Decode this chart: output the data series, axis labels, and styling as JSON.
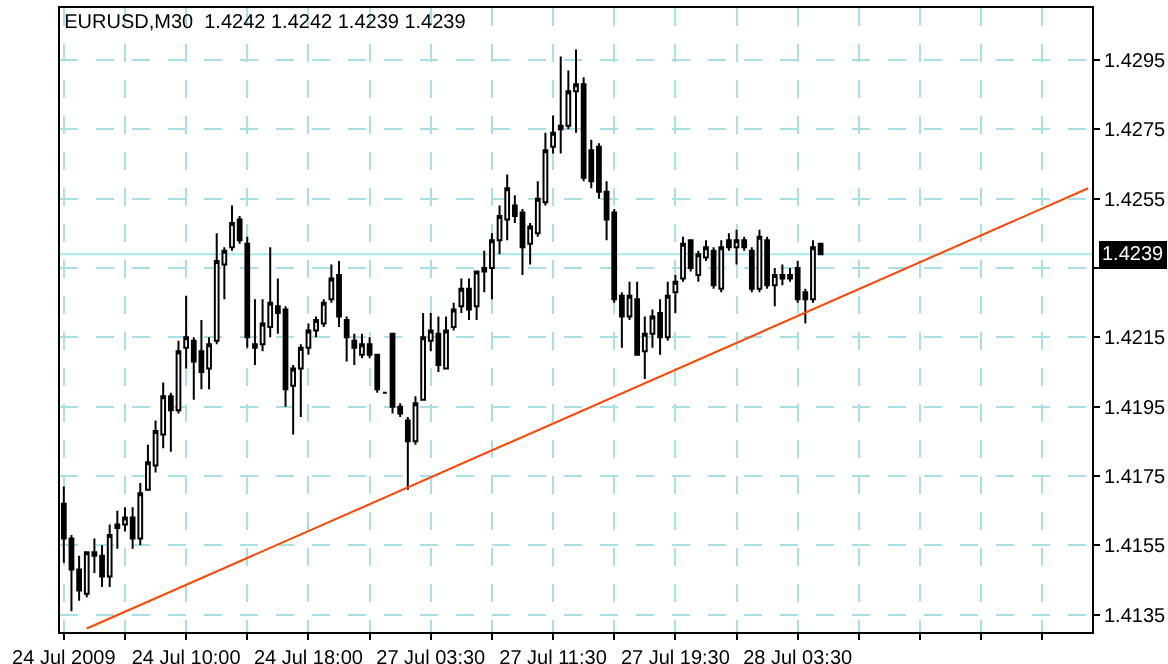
{
  "chart_data": {
    "type": "candlestick",
    "title": "EURUSD,M30  1.4242 1.4242 1.4239 1.4239",
    "categories": [
      "24 Jul 2009",
      null,
      null,
      null,
      null,
      null,
      null,
      null,
      null,
      null,
      null,
      null,
      null,
      null,
      null,
      null,
      "24 Jul 10:00",
      null,
      null,
      null,
      null,
      null,
      null,
      null,
      null,
      null,
      null,
      null,
      null,
      null,
      null,
      null,
      "24 Jul 18:00",
      null,
      null,
      null,
      null,
      null,
      null,
      null,
      null,
      null,
      null,
      null,
      null,
      null,
      null,
      null,
      "27 Jul 03:30",
      null,
      null,
      null,
      null,
      null,
      null,
      null,
      null,
      null,
      null,
      null,
      null,
      null,
      null,
      null,
      "27 Jul 11:30",
      null,
      null,
      null,
      null,
      null,
      null,
      null,
      null,
      null,
      null,
      null,
      null,
      null,
      null,
      null,
      "27 Jul 19:30",
      null,
      null,
      null,
      null,
      null,
      null,
      null,
      null,
      null,
      null,
      null,
      null,
      null,
      null,
      null,
      "28 Jul 03:30",
      null,
      null,
      null,
      null,
      null,
      null,
      null,
      null,
      null,
      null,
      null,
      null,
      null,
      null,
      null,
      null,
      null,
      null,
      null,
      null,
      null,
      null,
      null,
      null,
      null,
      null,
      null,
      null,
      null,
      null,
      null,
      null,
      null,
      null,
      null,
      null,
      null,
      null
    ],
    "series": [
      {
        "color": "#000000",
        "ohlc": [
          [
            1.4167,
            1.4172,
            1.415,
            1.4157
          ],
          [
            1.4157,
            1.4158,
            1.4136,
            1.4148
          ],
          [
            1.4148,
            1.4152,
            1.4139,
            1.4142
          ],
          [
            1.4141,
            1.4153,
            1.414,
            1.4153
          ],
          [
            1.4153,
            1.4157,
            1.4147,
            1.4152
          ],
          [
            1.4152,
            1.4155,
            1.4143,
            1.4146
          ],
          [
            1.4146,
            1.4161,
            1.4143,
            1.4158
          ],
          [
            1.416,
            1.4165,
            1.4154,
            1.4161
          ],
          [
            1.4161,
            1.4166,
            1.4159,
            1.4163
          ],
          [
            1.4163,
            1.4166,
            1.4154,
            1.4157
          ],
          [
            1.4157,
            1.4173,
            1.4155,
            1.417
          ],
          [
            1.4171,
            1.4184,
            1.4171,
            1.4179
          ],
          [
            1.4178,
            1.4191,
            1.4176,
            1.4188
          ],
          [
            1.4187,
            1.4202,
            1.4183,
            1.4198
          ],
          [
            1.4198,
            1.4199,
            1.4182,
            1.4194
          ],
          [
            1.4194,
            1.4214,
            1.4193,
            1.4211
          ],
          [
            1.4212,
            1.4227,
            1.4206,
            1.4215
          ],
          [
            1.4214,
            1.4215,
            1.4197,
            1.4208
          ],
          [
            1.4211,
            1.422,
            1.42,
            1.4205
          ],
          [
            1.4206,
            1.4215,
            1.42,
            1.4213
          ],
          [
            1.4214,
            1.4245,
            1.4213,
            1.4237
          ],
          [
            1.4236,
            1.4241,
            1.4226,
            1.424
          ],
          [
            1.4241,
            1.4253,
            1.424,
            1.4248
          ],
          [
            1.4249,
            1.425,
            1.4242,
            1.4243
          ],
          [
            1.4242,
            1.4244,
            1.4212,
            1.4215
          ],
          [
            1.4213,
            1.4226,
            1.4207,
            1.4212
          ],
          [
            1.4213,
            1.4226,
            1.4211,
            1.4219
          ],
          [
            1.4218,
            1.4241,
            1.4215,
            1.4225
          ],
          [
            1.4224,
            1.4232,
            1.4216,
            1.4222
          ],
          [
            1.4223,
            1.4224,
            1.4195,
            1.42
          ],
          [
            1.4201,
            1.4207,
            1.4187,
            1.4206
          ],
          [
            1.4206,
            1.4213,
            1.4192,
            1.4212
          ],
          [
            1.4212,
            1.4219,
            1.421,
            1.4217
          ],
          [
            1.4217,
            1.4221,
            1.4215,
            1.422
          ],
          [
            1.4219,
            1.4226,
            1.4218,
            1.4225
          ],
          [
            1.4226,
            1.4236,
            1.4225,
            1.4232
          ],
          [
            1.4233,
            1.4237,
            1.4218,
            1.4221
          ],
          [
            1.422,
            1.4221,
            1.4208,
            1.4215
          ],
          [
            1.4214,
            1.4216,
            1.4207,
            1.4212
          ],
          [
            1.421,
            1.4216,
            1.4209,
            1.4213
          ],
          [
            1.4213,
            1.4215,
            1.4209,
            1.421
          ],
          [
            1.421,
            1.421,
            1.4199,
            1.42
          ],
          [
            1.4199,
            1.4199,
            1.4199,
            1.4199
          ],
          [
            1.4216,
            1.4216,
            1.4193,
            1.4195
          ],
          [
            1.4195,
            1.4196,
            1.4192,
            1.4193
          ],
          [
            1.4191,
            1.4192,
            1.4171,
            1.4185
          ],
          [
            1.4185,
            1.4198,
            1.4184,
            1.4196
          ],
          [
            1.4197,
            1.4222,
            1.4197,
            1.4215
          ],
          [
            1.4214,
            1.4222,
            1.4211,
            1.4217
          ],
          [
            1.4216,
            1.4221,
            1.4205,
            1.4207
          ],
          [
            1.4206,
            1.4221,
            1.4206,
            1.4217
          ],
          [
            1.4218,
            1.4225,
            1.4217,
            1.4223
          ],
          [
            1.4224,
            1.4232,
            1.4222,
            1.4229
          ],
          [
            1.4229,
            1.4232,
            1.422,
            1.4223
          ],
          [
            1.4224,
            1.4234,
            1.422,
            1.4234
          ],
          [
            1.4234,
            1.424,
            1.4228,
            1.4235
          ],
          [
            1.4235,
            1.4245,
            1.4226,
            1.4243
          ],
          [
            1.4243,
            1.4253,
            1.4239,
            1.425
          ],
          [
            1.4249,
            1.4262,
            1.4243,
            1.4258
          ],
          [
            1.4253,
            1.4256,
            1.4248,
            1.425
          ],
          [
            1.4251,
            1.4252,
            1.4233,
            1.4241
          ],
          [
            1.4242,
            1.4248,
            1.4236,
            1.4247
          ],
          [
            1.4245,
            1.426,
            1.4244,
            1.4255
          ],
          [
            1.4254,
            1.4274,
            1.4253,
            1.4269
          ],
          [
            1.427,
            1.4279,
            1.4268,
            1.4274
          ],
          [
            1.4275,
            1.4296,
            1.4268,
            1.4276
          ],
          [
            1.4276,
            1.4292,
            1.4275,
            1.4286
          ],
          [
            1.4286,
            1.4298,
            1.4274,
            1.4288
          ],
          [
            1.4288,
            1.429,
            1.426,
            1.4261
          ],
          [
            1.4269,
            1.4272,
            1.4258,
            1.426
          ],
          [
            1.427,
            1.4271,
            1.4255,
            1.4257
          ],
          [
            1.4257,
            1.426,
            1.4243,
            1.4249
          ],
          [
            1.4251,
            1.4252,
            1.4225,
            1.4226
          ],
          [
            1.4227,
            1.4228,
            1.4212,
            1.4221
          ],
          [
            1.4221,
            1.4231,
            1.422,
            1.4227
          ],
          [
            1.4226,
            1.4231,
            1.421,
            1.421
          ],
          [
            1.4211,
            1.4221,
            1.4203,
            1.4216
          ],
          [
            1.4216,
            1.4223,
            1.4212,
            1.4221
          ],
          [
            1.4222,
            1.4226,
            1.421,
            1.4215
          ],
          [
            1.4215,
            1.4231,
            1.4214,
            1.4227
          ],
          [
            1.4228,
            1.4233,
            1.4222,
            1.4231
          ],
          [
            1.4232,
            1.4244,
            1.4231,
            1.4242
          ],
          [
            1.4243,
            1.4243,
            1.4234,
            1.4235
          ],
          [
            1.4233,
            1.424,
            1.4231,
            1.4239
          ],
          [
            1.4238,
            1.4243,
            1.4237,
            1.4241
          ],
          [
            1.424,
            1.4241,
            1.4229,
            1.423
          ],
          [
            1.4229,
            1.4243,
            1.4228,
            1.4241
          ],
          [
            1.4243,
            1.4245,
            1.424,
            1.4241
          ],
          [
            1.4241,
            1.4246,
            1.4236,
            1.4243
          ],
          [
            1.4243,
            1.4244,
            1.424,
            1.4241
          ],
          [
            1.424,
            1.4241,
            1.4228,
            1.4229
          ],
          [
            1.4229,
            1.4246,
            1.4228,
            1.4244
          ],
          [
            1.4243,
            1.4244,
            1.4229,
            1.423
          ],
          [
            1.423,
            1.4235,
            1.4224,
            1.4233
          ],
          [
            1.4233,
            1.4236,
            1.423,
            1.4232
          ],
          [
            1.4233,
            1.4235,
            1.4231,
            1.4232
          ],
          [
            1.4235,
            1.4237,
            1.4225,
            1.4226
          ],
          [
            1.4228,
            1.4229,
            1.4219,
            1.4226
          ],
          [
            1.4226,
            1.4243,
            1.4225,
            1.4241
          ],
          [
            1.4242,
            1.4242,
            1.4239,
            1.4239
          ],
          null,
          null,
          null,
          null,
          null,
          null,
          null,
          null,
          null,
          null,
          null,
          null,
          null,
          null,
          null,
          null,
          null,
          null,
          null,
          null,
          null,
          null,
          null,
          null,
          null,
          null,
          null,
          null,
          null,
          null,
          null,
          null,
          null,
          null,
          null
        ]
      },
      {
        "type": "line",
        "color": "#ff4500",
        "values": [
          null,
          null,
          null,
          1.4131,
          null,
          null,
          null,
          null,
          null,
          null,
          null,
          null,
          null,
          null,
          null,
          null,
          null,
          null,
          null,
          null,
          null,
          null,
          null,
          null,
          null,
          null,
          null,
          null,
          null,
          null,
          null,
          null,
          null,
          null,
          null,
          null,
          null,
          null,
          null,
          null,
          null,
          null,
          null,
          null,
          null,
          null,
          null,
          null,
          null,
          null,
          null,
          null,
          null,
          null,
          null,
          null,
          null,
          null,
          null,
          null,
          null,
          null,
          null,
          null,
          null,
          null,
          null,
          null,
          null,
          null,
          null,
          null,
          null,
          null,
          null,
          null,
          null,
          null,
          null,
          null,
          null,
          null,
          null,
          null,
          null,
          null,
          null,
          null,
          null,
          null,
          null,
          null,
          null,
          null,
          null,
          null,
          null,
          null,
          null,
          null,
          null,
          null,
          null,
          null,
          null,
          null,
          null,
          null,
          null,
          null,
          null,
          null,
          null,
          null,
          null,
          null,
          null,
          null,
          null,
          null,
          null,
          null,
          null,
          null,
          null,
          null,
          null,
          null,
          null,
          null,
          null,
          null,
          null,
          null,
          1.4258
        ]
      }
    ],
    "ylim": [
      1.413,
      1.431
    ],
    "yticks": [
      1.4135,
      1.4155,
      1.4175,
      1.4195,
      1.4215,
      {
        "value": 1.4235,
        "label": null
      },
      1.4255,
      1.4275,
      1.4295
    ],
    "ref_lines": [
      {
        "axis": "y",
        "value": 1.4239,
        "label": "1.4239",
        "color": "#a8eaea"
      }
    ],
    "grid": true
  }
}
